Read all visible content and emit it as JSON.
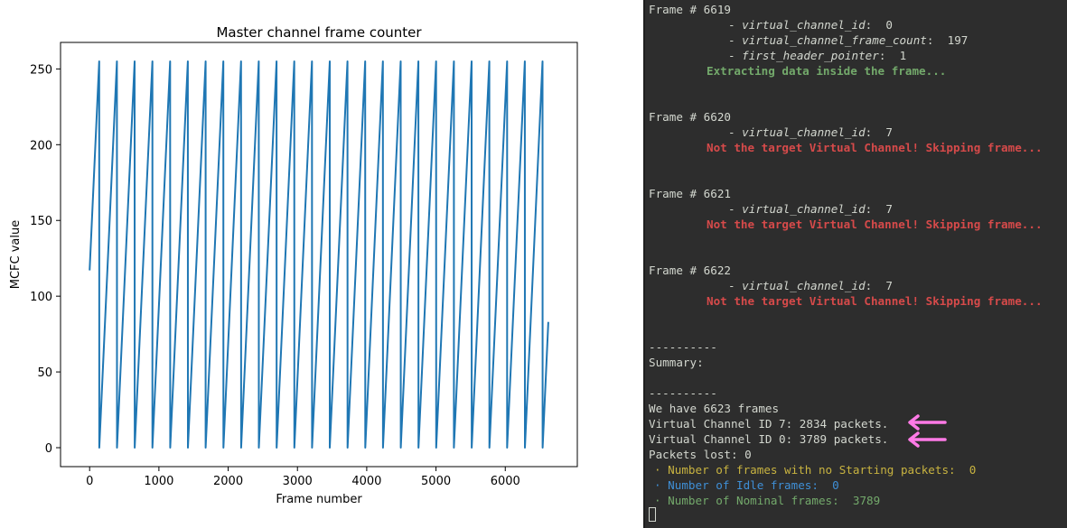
{
  "chart_data": {
    "type": "line",
    "title": "Master channel frame counter",
    "xlabel": "Frame number",
    "ylabel": "MCFC value",
    "xlim": [
      -420,
      7040
    ],
    "ylim": [
      -12.5,
      267.5
    ],
    "x_ticks": [
      0,
      1000,
      2000,
      3000,
      4000,
      5000,
      6000
    ],
    "y_ticks": [
      0,
      50,
      100,
      150,
      200,
      250
    ],
    "series_color": "#1f77b4",
    "series": [
      {
        "start": [
          0,
          117
        ],
        "sawtooth_period": 256,
        "max": 255,
        "min": 0,
        "first_peak_x": 138,
        "end": [
          6622,
          83
        ]
      }
    ]
  },
  "terminal": {
    "frames": [
      {
        "header": "Frame # 6619",
        "fields": [
          {
            "prefix": "- ",
            "key": "virtual_channel_id",
            "sep": ":  ",
            "value": "0"
          },
          {
            "prefix": "- ",
            "key": "virtual_channel_frame_count",
            "sep": ":  ",
            "value": "197"
          },
          {
            "prefix": "- ",
            "key": "first_header_pointer",
            "sep": ":  ",
            "value": "1"
          }
        ],
        "message": "Extracting data inside the frame...",
        "message_color": "#73a96b"
      },
      {
        "header": "Frame # 6620",
        "fields": [
          {
            "prefix": "- ",
            "key": "virtual_channel_id",
            "sep": ":  ",
            "value": "7"
          }
        ],
        "message": "Not the target Virtual Channel! Skipping frame...",
        "message_color": "#d64a4a"
      },
      {
        "header": "Frame # 6621",
        "fields": [
          {
            "prefix": "- ",
            "key": "virtual_channel_id",
            "sep": ":  ",
            "value": "7"
          }
        ],
        "message": "Not the target Virtual Channel! Skipping frame...",
        "message_color": "#d64a4a"
      },
      {
        "header": "Frame # 6622",
        "fields": [
          {
            "prefix": "- ",
            "key": "virtual_channel_id",
            "sep": ":  ",
            "value": "7"
          }
        ],
        "message": "Not the target Virtual Channel! Skipping frame...",
        "message_color": "#d64a4a"
      }
    ],
    "separator": "----------",
    "summary_label": "Summary:",
    "summary_lines": [
      "We have 6623 frames",
      "Virtual Channel ID 7: 2834 packets.",
      "Virtual Channel ID 0: 3789 packets.",
      "Packets lost: 0"
    ],
    "stats": [
      {
        "text": "· Number of frames with no Starting packets:  0",
        "color": "#c8b340"
      },
      {
        "text": "· Number of Idle frames:  0",
        "color": "#3f8fd6"
      },
      {
        "text": "· Number of Nominal frames:  3789",
        "color": "#73a96b"
      }
    ],
    "arrow_color": "#ff7ae6"
  }
}
